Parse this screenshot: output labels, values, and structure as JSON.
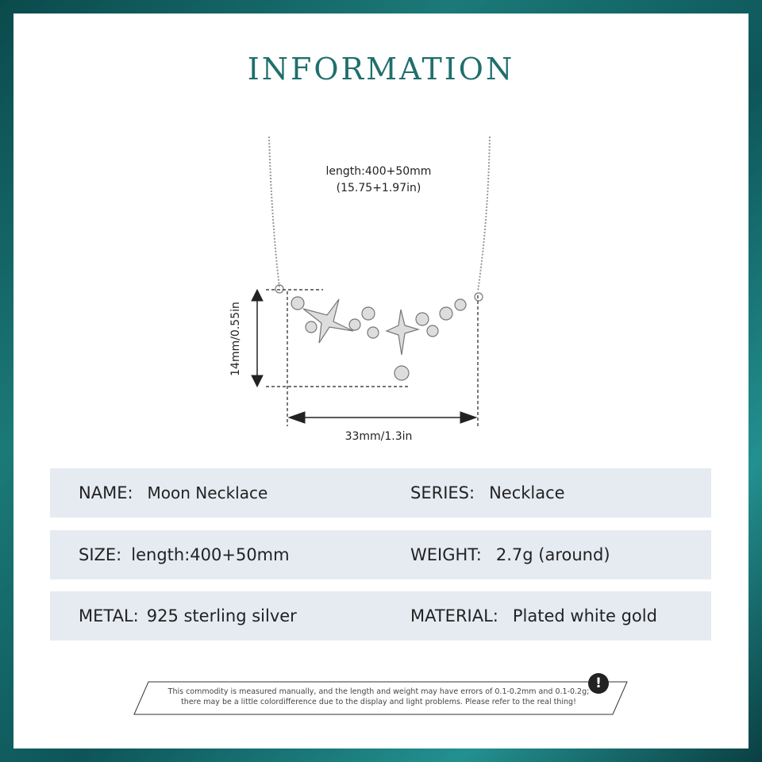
{
  "title": "INFORMATION",
  "dimensions": {
    "length_line1": "length:400+50mm",
    "length_line2": "(15.75+1.97in)",
    "height": "14mm/0.55in",
    "width": "33mm/1.3in"
  },
  "specs": [
    {
      "left_label": "NAME:",
      "left_value": "Moon Necklace",
      "right_label": "SERIES:",
      "right_value": "Necklace"
    },
    {
      "left_label": "SIZE:",
      "left_value": "length:400+50mm",
      "right_label": "WEIGHT:",
      "right_value": "2.7g (around)"
    },
    {
      "left_label": "METAL:",
      "left_value": "925 sterling silver",
      "right_label": "MATERIAL:",
      "right_value": "Plated white gold"
    }
  ],
  "note": {
    "line1": "This commodity is measured manually, and the length and weight may have errors of 0.1-0.2mm and 0.1-0.2g;",
    "line2": "there may be a little colordifference due to the display and light problems. Please refer to the real thing!",
    "icon": "exclamation-icon"
  },
  "colors": {
    "frame": "#1b7a78",
    "title": "#1f6f6d",
    "row_bg": "#e6ebf2"
  }
}
